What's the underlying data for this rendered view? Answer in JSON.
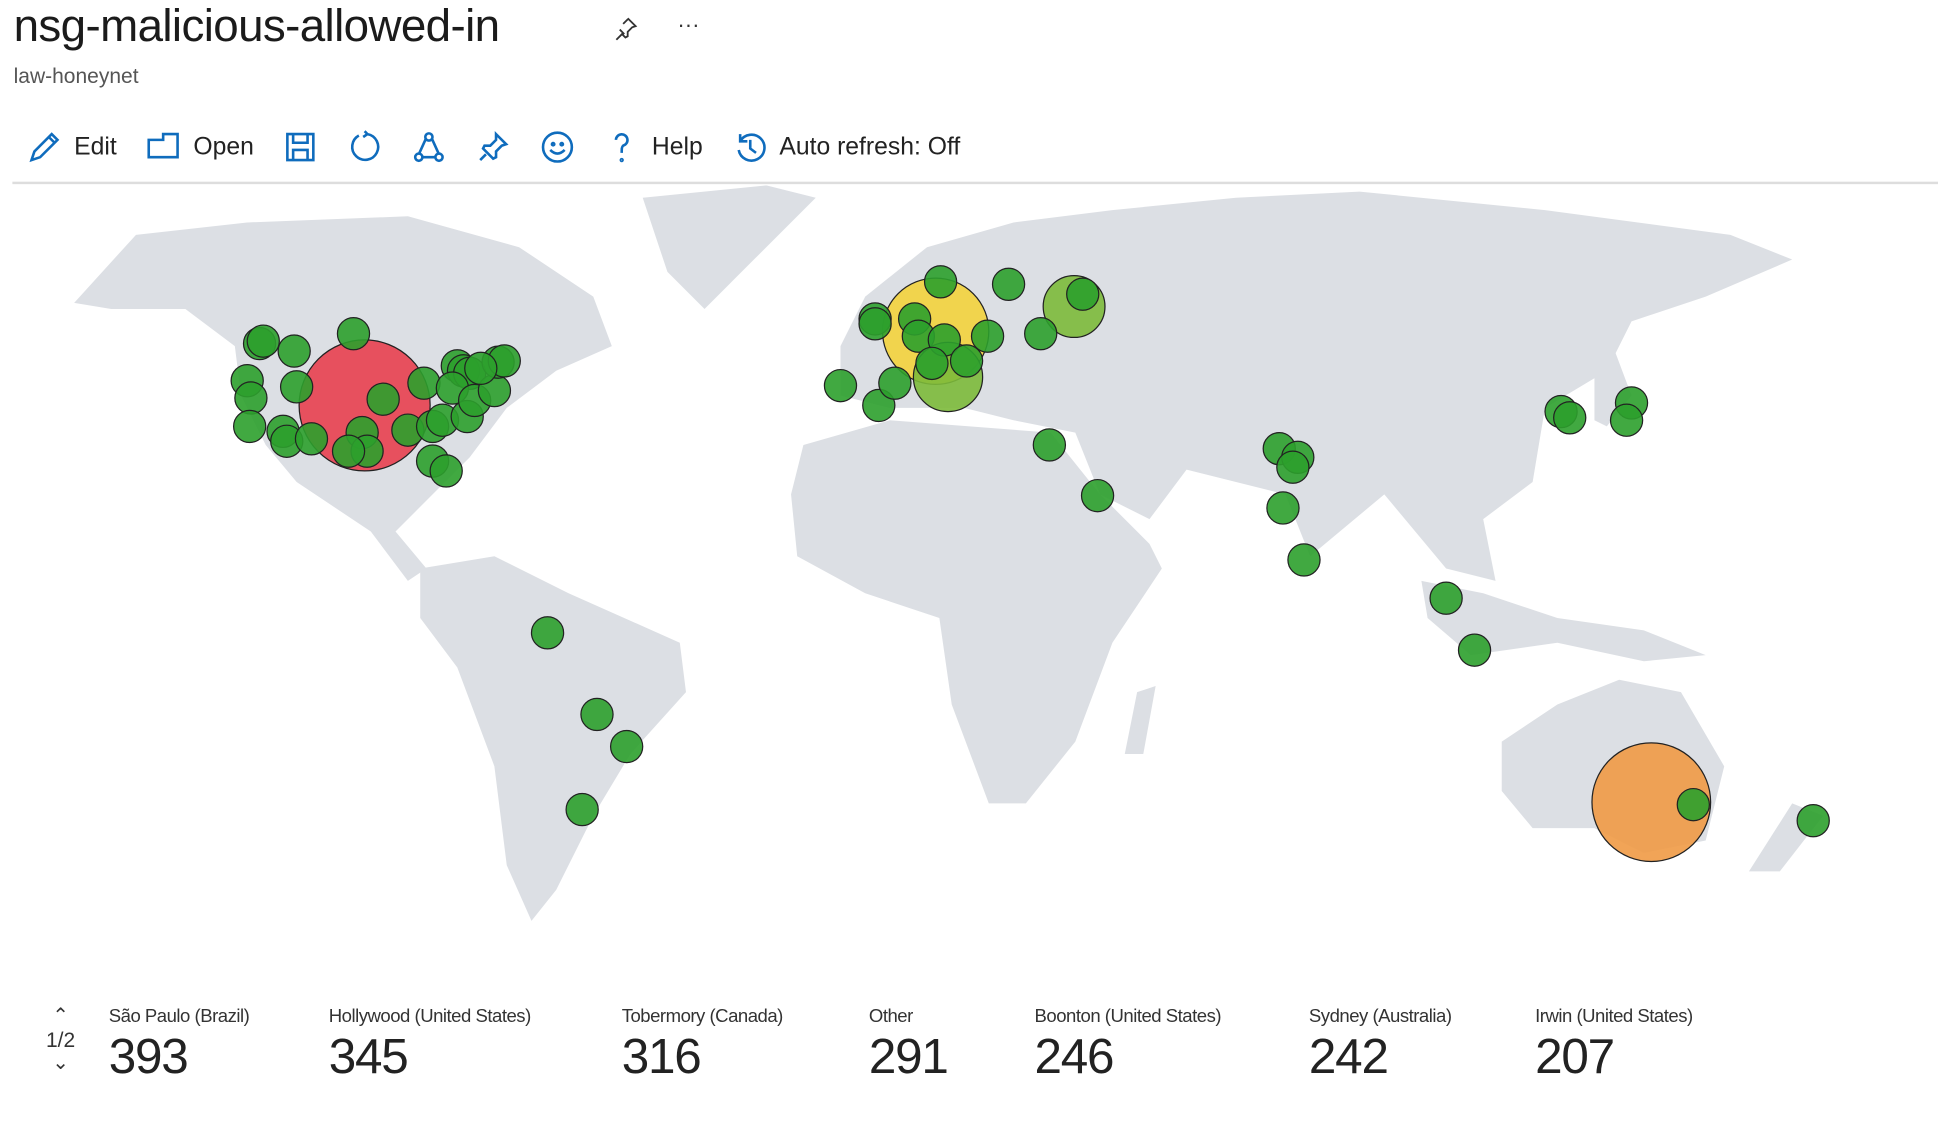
{
  "header": {
    "title": "nsg-malicious-allowed-in",
    "subtitle": "law-honeynet",
    "more": "···"
  },
  "toolbar": {
    "edit": "Edit",
    "open": "Open",
    "help": "Help",
    "auto_refresh": "Auto refresh: Off"
  },
  "colors": {
    "land": "#dcdfe4",
    "low": "#2ca02c",
    "mid": "#7cba3a",
    "high_yellow": "#f3d33c",
    "high_orange": "#f09a45",
    "highest": "#e8404f",
    "accent": "#0f6cbd"
  },
  "legend": {
    "page": "1/2",
    "items": [
      {
        "label": "São Paulo (Brazil)",
        "value": "393"
      },
      {
        "label": "Hollywood (United States)",
        "value": "345"
      },
      {
        "label": "Tobermory (Canada)",
        "value": "316"
      },
      {
        "label": "Other",
        "value": "291"
      },
      {
        "label": "Boonton (United States)",
        "value": "246"
      },
      {
        "label": "Sydney (Australia)",
        "value": "242"
      },
      {
        "label": "Irwin (United States)",
        "value": "207"
      }
    ]
  }
}
